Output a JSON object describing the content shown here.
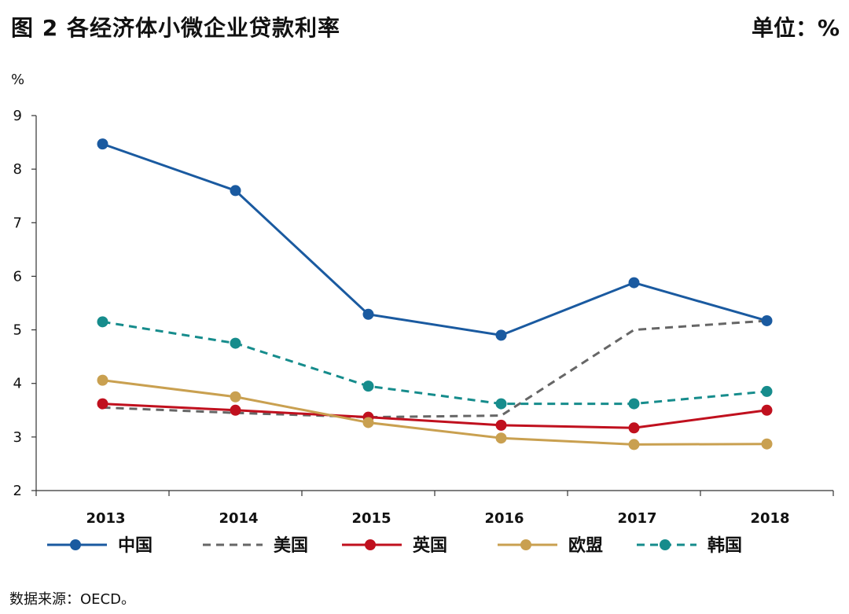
{
  "title": "图 2  各经济体小微企业贷款利率",
  "unit": "单位：%",
  "source": "数据来源：OECD。",
  "chart_data": {
    "type": "line",
    "ylabel": "%",
    "ylim": [
      2,
      9
    ],
    "yticks": [
      2,
      3,
      4,
      5,
      6,
      7,
      8,
      9
    ],
    "categories": [
      "2013",
      "2014",
      "2015",
      "2016",
      "2017",
      "2018"
    ],
    "grid": false,
    "legend_position": "bottom",
    "series": [
      {
        "name": "中国",
        "color": "#1a5aa0",
        "dash": false,
        "markers": true,
        "values": [
          8.47,
          7.6,
          5.29,
          4.9,
          5.88,
          5.17
        ]
      },
      {
        "name": "美国",
        "color": "#666666",
        "dash": true,
        "markers": false,
        "values": [
          3.55,
          3.45,
          3.37,
          3.4,
          5.0,
          5.17
        ]
      },
      {
        "name": "英国",
        "color": "#c0101e",
        "dash": false,
        "markers": true,
        "values": [
          3.62,
          3.5,
          3.37,
          3.22,
          3.17,
          3.5
        ]
      },
      {
        "name": "欧盟",
        "color": "#c9a050",
        "dash": false,
        "markers": true,
        "values": [
          4.06,
          3.75,
          3.27,
          2.98,
          2.86,
          2.87
        ]
      },
      {
        "name": "韩国",
        "color": "#168c8c",
        "dash": true,
        "markers": true,
        "values": [
          5.15,
          4.75,
          3.95,
          3.62,
          3.62,
          3.85
        ]
      }
    ]
  }
}
